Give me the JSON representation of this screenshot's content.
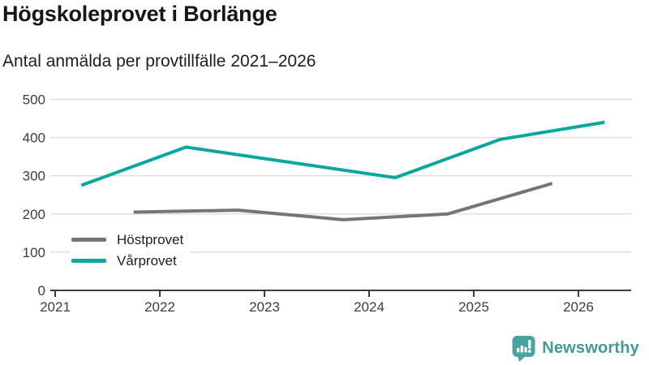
{
  "header": {
    "title": "Högskoleprovet i Borlänge",
    "subtitle": "Antal anmälda per provtillfälle 2021–2026"
  },
  "chart_data": {
    "type": "line",
    "title": "Högskoleprovet i Borlänge",
    "subtitle": "Antal anmälda per provtillfälle 2021–2026",
    "xlabel": "",
    "ylabel": "",
    "xlim": [
      2021,
      2026.55
    ],
    "ylim": [
      0,
      500
    ],
    "xticks": [
      2021,
      2022,
      2023,
      2024,
      2025,
      2026
    ],
    "yticks": [
      0,
      100,
      200,
      300,
      400,
      500
    ],
    "grid": "horizontal",
    "legend_position": "inside-bottom-left",
    "series": [
      {
        "name": "Höstprovet",
        "color": "#757575",
        "x": [
          2021.75,
          2022.75,
          2023.75,
          2024.75,
          2025.75
        ],
        "values": [
          205,
          210,
          185,
          200,
          280
        ]
      },
      {
        "name": "Vårprovet",
        "color": "#0aa79d",
        "x": [
          2021.25,
          2022.25,
          2023.25,
          2024.25,
          2025.25,
          2026.25
        ],
        "values": [
          275,
          375,
          335,
          295,
          395,
          440
        ]
      }
    ]
  },
  "style": {
    "gridline_color": "#dcdcdc",
    "axis_color": "#3d3d3d",
    "tick_label_color": "#3d3d3d"
  },
  "branding": {
    "logo_text": "Newsworthy",
    "logo_text_color": "#459a94",
    "logo_icon_color": "#4aa39c",
    "logo_icon": "newsworthy-bars-icon"
  }
}
